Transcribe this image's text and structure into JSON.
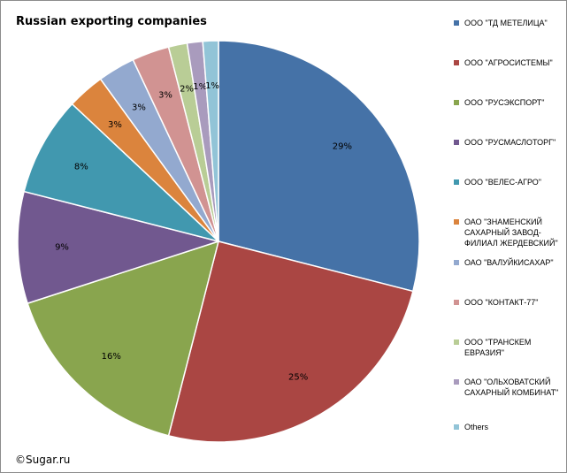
{
  "chart_data": {
    "type": "pie",
    "title": "Russian exporting companies",
    "start_angle": "top",
    "direction": "clockwise",
    "legend_position": "right",
    "slices": [
      {
        "name": "ООО \"ТД МЕТЕЛИЦА\"",
        "value": 29,
        "label": "29%",
        "color": "#4572a7"
      },
      {
        "name": "ООО \"АГРОСИСТЕМЫ\"",
        "value": 25,
        "label": "25%",
        "color": "#aa4643"
      },
      {
        "name": "ООО \"РУСЭКСПОРТ\"",
        "value": 16,
        "label": "16%",
        "color": "#89a54e"
      },
      {
        "name": "ООО \"РУСМАСЛОТОРГ\"",
        "value": 9,
        "label": "9%",
        "color": "#71588f"
      },
      {
        "name": "ООО \"ВЕЛЕС-АГРО\"",
        "value": 8,
        "label": "8%",
        "color": "#4198af"
      },
      {
        "name": "ОАО \"ЗНАМЕНСКИЙ САХАРНЫЙ ЗАВОД-ФИЛИАЛ ЖЕРДЕВСКИЙ\"",
        "value": 3,
        "label": "3%",
        "color": "#db843d"
      },
      {
        "name": "ОАО \"ВАЛУЙКИСАХАР\"",
        "value": 3,
        "label": "3%",
        "color": "#93a9cf"
      },
      {
        "name": "ООО \"КОНТАКТ-77\"",
        "value": 3,
        "label": "3%",
        "color": "#d19392"
      },
      {
        "name": "ООО \"ТРАНСКЕМ ЕВРАЗИЯ\"",
        "value": 1.5,
        "label": "2%",
        "color": "#b9cd96"
      },
      {
        "name": "ОАО \"ОЛЬХОВАТСКИЙ САХАРНЫЙ КОМБИНАТ\"",
        "value": 1.25,
        "label": "1%",
        "color": "#a99bbd"
      },
      {
        "name": "Others",
        "value": 1.25,
        "label": "1%",
        "color": "#92c4d7"
      }
    ]
  },
  "source_note": "©Sugar.ru"
}
